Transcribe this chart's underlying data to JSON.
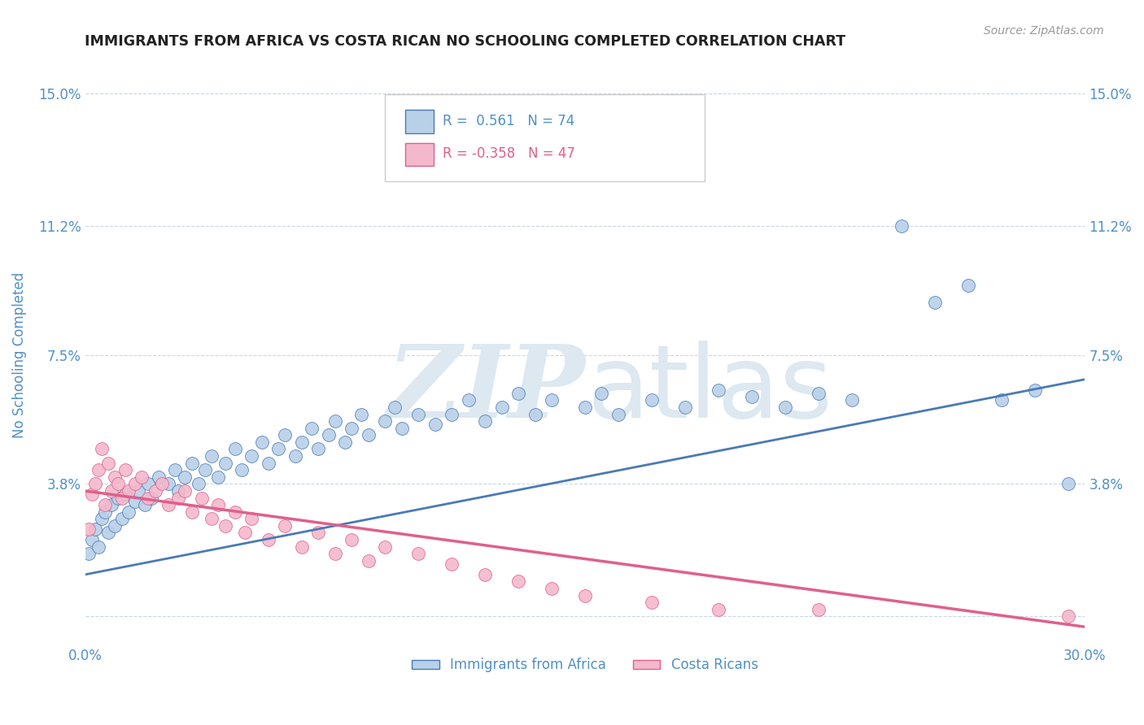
{
  "title": "IMMIGRANTS FROM AFRICA VS COSTA RICAN NO SCHOOLING COMPLETED CORRELATION CHART",
  "source_text": "Source: ZipAtlas.com",
  "ylabel": "No Schooling Completed",
  "xlim": [
    0.0,
    0.3
  ],
  "ylim": [
    -0.008,
    0.158
  ],
  "xticks": [
    0.0,
    0.05,
    0.1,
    0.15,
    0.2,
    0.25,
    0.3
  ],
  "xticklabels": [
    "0.0%",
    "",
    "",
    "",
    "",
    "",
    "30.0%"
  ],
  "ytick_vals": [
    0.0,
    0.038,
    0.075,
    0.112,
    0.15
  ],
  "ytick_labels": [
    "",
    "3.8%",
    "7.5%",
    "11.2%",
    "15.0%"
  ],
  "blue_R": 0.561,
  "blue_N": 74,
  "pink_R": -0.358,
  "pink_N": 47,
  "blue_color": "#b8d0e8",
  "pink_color": "#f4b8cc",
  "blue_line_color": "#4a7ab5",
  "pink_line_color": "#e0608a",
  "axis_label_color": "#5090c8",
  "tick_label_color": "#5090c8",
  "watermark_color": "#dde8f0",
  "background_color": "#ffffff",
  "grid_color": "#c8d8e4",
  "blue_trend_x0": 0.0,
  "blue_trend_y0": 0.012,
  "blue_trend_x1": 0.3,
  "blue_trend_y1": 0.068,
  "pink_trend_x0": 0.0,
  "pink_trend_y0": 0.036,
  "pink_trend_x1": 0.3,
  "pink_trend_y1": -0.003,
  "blue_scatter_x": [
    0.001,
    0.002,
    0.003,
    0.004,
    0.005,
    0.006,
    0.007,
    0.008,
    0.009,
    0.01,
    0.011,
    0.012,
    0.013,
    0.015,
    0.016,
    0.018,
    0.019,
    0.02,
    0.022,
    0.025,
    0.027,
    0.028,
    0.03,
    0.032,
    0.034,
    0.036,
    0.038,
    0.04,
    0.042,
    0.045,
    0.047,
    0.05,
    0.053,
    0.055,
    0.058,
    0.06,
    0.063,
    0.065,
    0.068,
    0.07,
    0.073,
    0.075,
    0.078,
    0.08,
    0.083,
    0.085,
    0.09,
    0.093,
    0.095,
    0.1,
    0.105,
    0.11,
    0.115,
    0.12,
    0.125,
    0.13,
    0.135,
    0.14,
    0.15,
    0.155,
    0.16,
    0.17,
    0.18,
    0.19,
    0.2,
    0.21,
    0.22,
    0.23,
    0.245,
    0.255,
    0.265,
    0.275,
    0.285,
    0.295
  ],
  "blue_scatter_y": [
    0.018,
    0.022,
    0.025,
    0.02,
    0.028,
    0.03,
    0.024,
    0.032,
    0.026,
    0.034,
    0.028,
    0.035,
    0.03,
    0.033,
    0.036,
    0.032,
    0.038,
    0.034,
    0.04,
    0.038,
    0.042,
    0.036,
    0.04,
    0.044,
    0.038,
    0.042,
    0.046,
    0.04,
    0.044,
    0.048,
    0.042,
    0.046,
    0.05,
    0.044,
    0.048,
    0.052,
    0.046,
    0.05,
    0.054,
    0.048,
    0.052,
    0.056,
    0.05,
    0.054,
    0.058,
    0.052,
    0.056,
    0.06,
    0.054,
    0.058,
    0.055,
    0.058,
    0.062,
    0.056,
    0.06,
    0.064,
    0.058,
    0.062,
    0.06,
    0.064,
    0.058,
    0.062,
    0.06,
    0.065,
    0.063,
    0.06,
    0.064,
    0.062,
    0.112,
    0.09,
    0.095,
    0.062,
    0.065,
    0.038
  ],
  "pink_scatter_x": [
    0.001,
    0.002,
    0.003,
    0.004,
    0.005,
    0.006,
    0.007,
    0.008,
    0.009,
    0.01,
    0.011,
    0.012,
    0.013,
    0.015,
    0.017,
    0.019,
    0.021,
    0.023,
    0.025,
    0.028,
    0.03,
    0.032,
    0.035,
    0.038,
    0.04,
    0.042,
    0.045,
    0.048,
    0.05,
    0.055,
    0.06,
    0.065,
    0.07,
    0.075,
    0.08,
    0.085,
    0.09,
    0.1,
    0.11,
    0.12,
    0.13,
    0.14,
    0.15,
    0.17,
    0.19,
    0.22,
    0.295
  ],
  "pink_scatter_y": [
    0.025,
    0.035,
    0.038,
    0.042,
    0.048,
    0.032,
    0.044,
    0.036,
    0.04,
    0.038,
    0.034,
    0.042,
    0.036,
    0.038,
    0.04,
    0.034,
    0.036,
    0.038,
    0.032,
    0.034,
    0.036,
    0.03,
    0.034,
    0.028,
    0.032,
    0.026,
    0.03,
    0.024,
    0.028,
    0.022,
    0.026,
    0.02,
    0.024,
    0.018,
    0.022,
    0.016,
    0.02,
    0.018,
    0.015,
    0.012,
    0.01,
    0.008,
    0.006,
    0.004,
    0.002,
    0.002,
    0.0
  ]
}
